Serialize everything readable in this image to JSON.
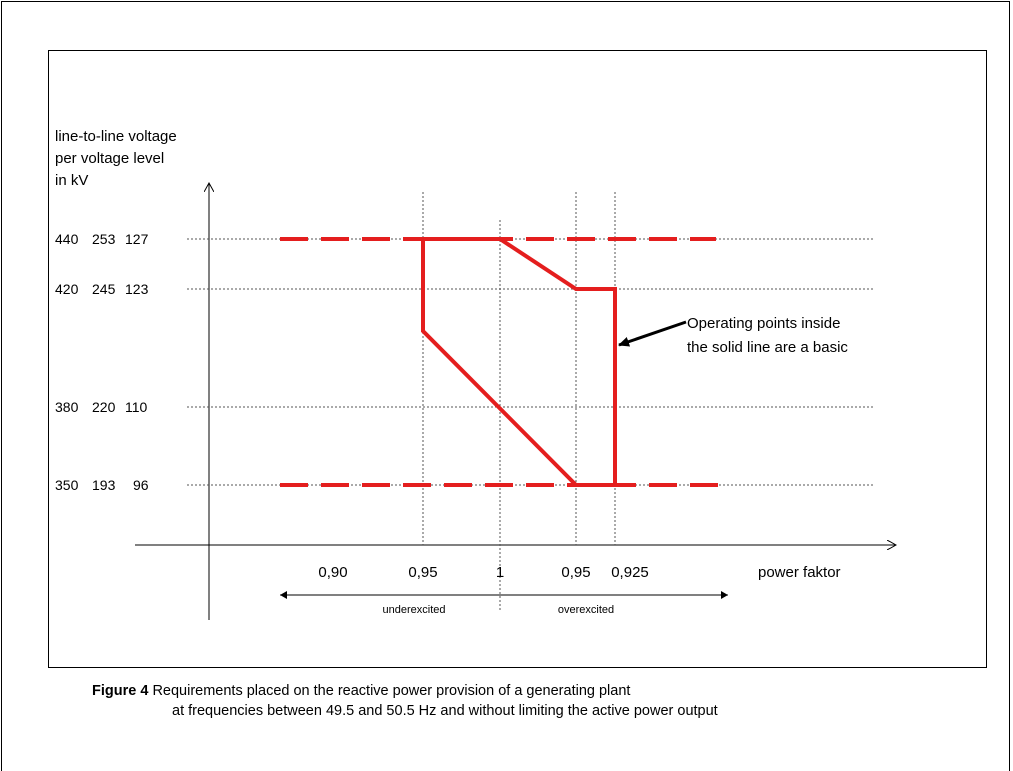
{
  "y_axis": {
    "label_lines": [
      "line-to-line voltage",
      "per voltage level",
      "in kV"
    ],
    "levels": [
      {
        "values": [
          "440",
          "253",
          "127"
        ]
      },
      {
        "values": [
          "420",
          "245",
          "123"
        ]
      },
      {
        "values": [
          "380",
          "220",
          "110"
        ]
      },
      {
        "values": [
          "350",
          "193",
          "96"
        ]
      }
    ]
  },
  "x_axis": {
    "label": "power faktor",
    "ticks": [
      "0,90",
      "0,95",
      "1",
      "0,95",
      "0,925"
    ]
  },
  "regions": {
    "under": "underexcited",
    "over": "overexcited"
  },
  "annotation": {
    "line1": "Operating points inside",
    "line2": "the solid line are a basic"
  },
  "caption": {
    "label": "Figure 4",
    "line1": "Requirements placed on the reactive power provision of a generating plant",
    "line2": "at frequencies between 49.5 and 50.5 Hz and without limiting the active power output"
  },
  "colors": {
    "boundary": "#e41e1e",
    "grid": "#555555",
    "axis": "#000000"
  }
}
